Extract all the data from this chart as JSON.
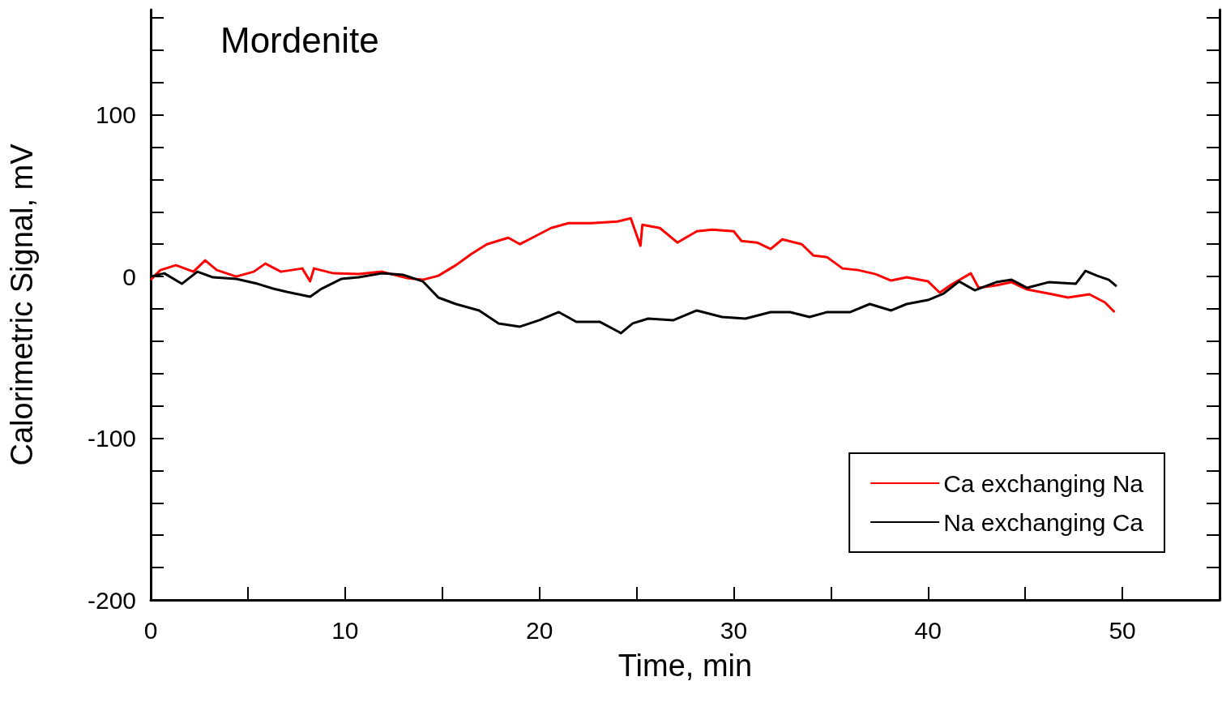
{
  "chart_data": {
    "type": "line",
    "title": "Mordenite",
    "xlabel": "Time, min",
    "ylabel": "Calorimetric Signal, mV",
    "xlim": [
      0,
      55
    ],
    "ylim": [
      -200,
      165
    ],
    "xticks": [
      0,
      {
        "value": 5,
        "label": null
      },
      10,
      {
        "value": 15,
        "label": null
      },
      20,
      {
        "value": 25,
        "label": null
      },
      30,
      {
        "value": 35,
        "label": null
      },
      40,
      {
        "value": 45,
        "label": null
      },
      50
    ],
    "yticks": [
      -200,
      {
        "value": -180,
        "label": null
      },
      {
        "value": -160,
        "label": null
      },
      {
        "value": -140,
        "label": null
      },
      {
        "value": -120,
        "label": null
      },
      -100,
      {
        "value": -80,
        "label": null
      },
      {
        "value": -60,
        "label": null
      },
      {
        "value": -40,
        "label": null
      },
      {
        "value": -20,
        "label": null
      },
      0,
      {
        "value": 20,
        "label": null
      },
      {
        "value": 40,
        "label": null
      },
      {
        "value": 60,
        "label": null
      },
      {
        "value": 80,
        "label": null
      },
      100,
      {
        "value": 120,
        "label": null
      },
      {
        "value": 140,
        "label": null
      },
      {
        "value": 160,
        "label": null
      }
    ],
    "grid": false,
    "legend": "bottom right",
    "marker": "none",
    "line_style": "solid",
    "series": [
      {
        "name": "Ca exchanging Na",
        "color": "#ff0000",
        "x": [
          0,
          0.5,
          1.3,
          2.2,
          2.8,
          3.4,
          4.4,
          5.3,
          5.9,
          6.7,
          7.8,
          8.2,
          8.4,
          9.4,
          10.7,
          11.9,
          13.2,
          14,
          14.8,
          15.7,
          16.5,
          17.3,
          18.4,
          19,
          19.8,
          20.6,
          21.5,
          22.7,
          24,
          24.7,
          25.2,
          25.3,
          26.2,
          27.1,
          28.1,
          28.9,
          30,
          30.4,
          31.2,
          31.9,
          32.5,
          33.5,
          34.1,
          34.8,
          35.6,
          36.4,
          37.3,
          38.1,
          38.9,
          40,
          40.6,
          41.2,
          42.2,
          42.6,
          43.5,
          44.3,
          45.1,
          46.4,
          47.2,
          48.3,
          49.1,
          49.6
        ],
        "values": [
          -2,
          4,
          7,
          3,
          10,
          4,
          0,
          3,
          8,
          3,
          5,
          -3,
          5,
          2,
          1.5,
          3,
          -1,
          -2,
          0.5,
          7,
          14,
          20,
          24,
          20,
          25,
          30,
          33,
          33,
          34,
          36,
          19,
          32,
          30,
          21,
          28,
          29,
          28,
          22,
          21,
          17,
          23,
          20,
          13,
          12,
          5,
          4,
          1.5,
          -2.5,
          -0.5,
          -3,
          -10,
          -5,
          2,
          -7,
          -5.5,
          -3.5,
          -8,
          -11,
          -13,
          -11,
          -16,
          -22
        ]
      },
      {
        "name": "Na exchanging Ca",
        "color": "#000000",
        "x": [
          0,
          0.7,
          1.6,
          2.4,
          3.2,
          4.4,
          5.5,
          6.3,
          7,
          8.2,
          8.8,
          9.8,
          10.7,
          11.9,
          13,
          14,
          14.8,
          15.7,
          16.9,
          17.9,
          19,
          20,
          21,
          21.9,
          23.1,
          24.2,
          24.8,
          25.6,
          26.9,
          28.1,
          29.4,
          30.6,
          31.9,
          32.9,
          33.9,
          34.8,
          36,
          37,
          38.1,
          38.9,
          40,
          40.8,
          41.6,
          42.4,
          43.5,
          44.3,
          45.1,
          46.2,
          47.6,
          48.1,
          48.7,
          49.3,
          49.7
        ],
        "values": [
          0,
          2,
          -4.5,
          3,
          -0.5,
          -1.5,
          -4.5,
          -7.5,
          -9.5,
          -12.5,
          -7.5,
          -1.5,
          -0.5,
          2,
          1,
          -3,
          -13,
          -17,
          -21,
          -29,
          -31,
          -27,
          -22,
          -28,
          -28,
          -35,
          -29,
          -26,
          -27,
          -21,
          -25,
          -26,
          -22,
          -22,
          -25,
          -22,
          -22,
          -17,
          -21,
          -17,
          -14.5,
          -10.5,
          -3,
          -8.5,
          -3.5,
          -2,
          -7,
          -3.5,
          -4.5,
          3.5,
          0.5,
          -2,
          -6
        ]
      }
    ]
  }
}
